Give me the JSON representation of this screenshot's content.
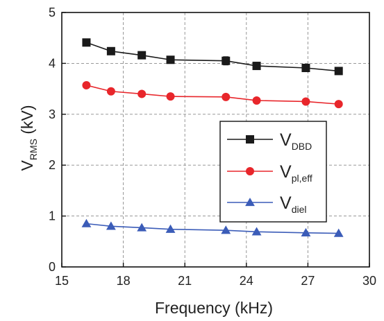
{
  "chart_data": {
    "type": "line",
    "x_axis": {
      "label": "Frequency (kHz)",
      "range": [
        15,
        30
      ],
      "ticks": [
        15,
        18,
        21,
        24,
        27,
        30
      ]
    },
    "y_axis": {
      "label_main": "V",
      "label_sub": "RMS",
      "label_suffix": " (kV)",
      "range": [
        0,
        5
      ],
      "ticks": [
        0,
        1,
        2,
        3,
        4,
        5
      ]
    },
    "grid": true,
    "legend_position": "right",
    "series": [
      {
        "key": "dbd",
        "label_main": "V",
        "label_sub": "DBD",
        "color": "#1a1a1a",
        "marker": "square",
        "x": [
          16.2,
          17.4,
          18.9,
          20.3,
          23.0,
          24.5,
          26.9,
          28.5
        ],
        "y": [
          4.41,
          4.24,
          4.16,
          4.07,
          4.05,
          3.95,
          3.91,
          3.85
        ],
        "error": [
          0.04,
          0.04,
          0.05,
          0.05,
          0.08,
          0.07,
          0.07,
          0.05
        ]
      },
      {
        "key": "pl_eff",
        "label_main": "V",
        "label_sub": "pl,eff",
        "color": "#e8262b",
        "marker": "circle",
        "x": [
          16.2,
          17.4,
          18.9,
          20.3,
          23.0,
          24.5,
          26.9,
          28.5
        ],
        "y": [
          3.57,
          3.45,
          3.4,
          3.35,
          3.34,
          3.27,
          3.25,
          3.2
        ],
        "error": []
      },
      {
        "key": "diel",
        "label_main": "V",
        "label_sub": "diel",
        "color": "#3b5cb8",
        "marker": "triangle",
        "x": [
          16.2,
          17.4,
          18.9,
          20.3,
          23.0,
          24.5,
          26.9,
          28.5
        ],
        "y": [
          0.85,
          0.8,
          0.77,
          0.74,
          0.72,
          0.69,
          0.67,
          0.66
        ],
        "error": []
      }
    ]
  }
}
